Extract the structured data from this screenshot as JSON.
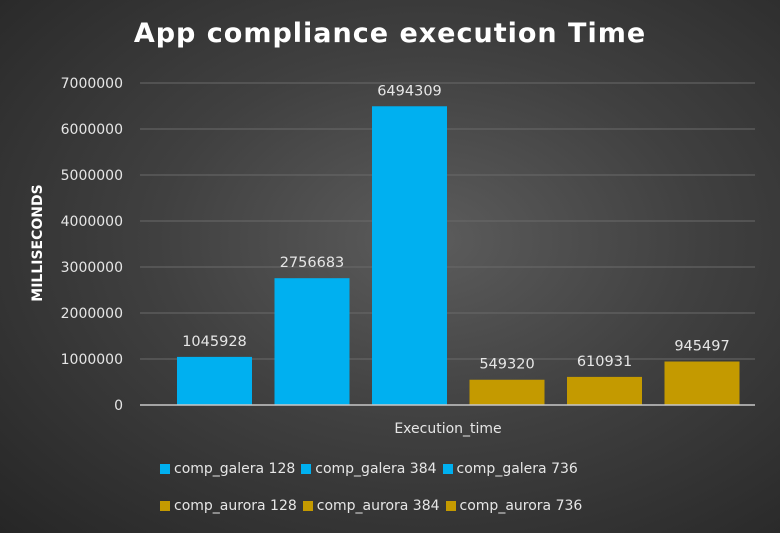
{
  "chart_data": {
    "type": "bar",
    "title": "App compliance execution Time",
    "xlabel": "Execution_time",
    "ylabel": "MILLISECONDS",
    "categories": [
      "Execution_time"
    ],
    "ylim": [
      0,
      7000000
    ],
    "yticks": [
      "0",
      "1000000",
      "2000000",
      "3000000",
      "4000000",
      "5000000",
      "6000000",
      "7000000"
    ],
    "grid": true,
    "legend_position": "bottom",
    "series": [
      {
        "name": "comp_galera 128",
        "values": [
          1045928
        ],
        "label": "1045928",
        "color": "#00b0f0"
      },
      {
        "name": "comp_galera 384",
        "values": [
          2756683
        ],
        "label": "2756683",
        "color": "#00b0f0"
      },
      {
        "name": "comp_galera 736",
        "values": [
          6494309
        ],
        "label": "6494309",
        "color": "#00b0f0"
      },
      {
        "name": "comp_aurora 128",
        "values": [
          549320
        ],
        "label": "549320",
        "color": "#c49a00"
      },
      {
        "name": "comp_aurora 384",
        "values": [
          610931
        ],
        "label": "610931",
        "color": "#c49a00"
      },
      {
        "name": "comp_aurora 736",
        "values": [
          945497
        ],
        "label": "945497",
        "color": "#c49a00"
      }
    ]
  }
}
